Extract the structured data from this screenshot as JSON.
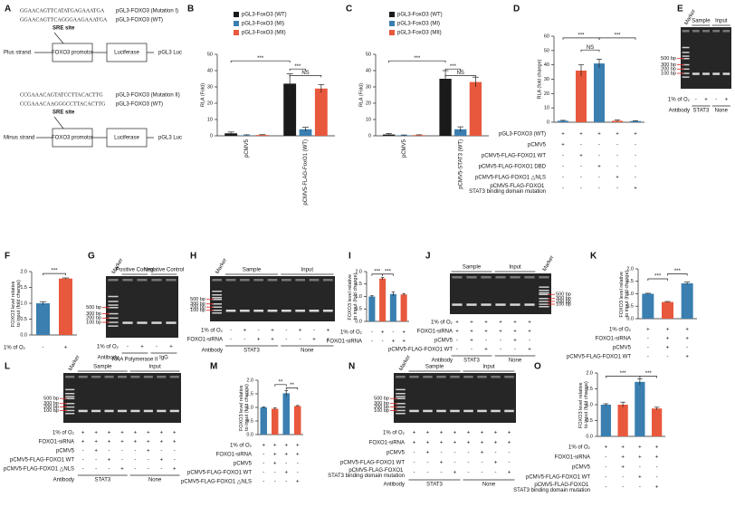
{
  "diagram": {
    "panel": "A",
    "seq_mut1": "GGAACAGTTCATATGAGAAATGA",
    "name_mut1": "pGL3-FOXO3 (Mutation I)",
    "seq_wt1": "GGAACAGTTCAGGGAAGAAATGA",
    "name_wt1": "pGL3-FOXO3 (WT)",
    "site1": "SRE site",
    "strand1": "Plus strand",
    "promoter1": "FOXO3 promotor",
    "luc1": "Luciferase",
    "vector1": "pGL3 Luc",
    "seq_mut2": "CCGAAACAGTATCCTTACACTTG",
    "name_mut2": "pGL3-FOXO3 (Mutation II)",
    "seq_wt2": "CCGAAACAAGGGCCTTACACTTG",
    "name_wt2": "pGL3-FOXO3 (WT)",
    "site2": "SRE site",
    "strand2": "Minus strand",
    "promoter2": "FOXO3 promotor",
    "luc2": "Luciferase",
    "vector2": "pGL3 Luc"
  },
  "chart_data": [
    {
      "panel": "B",
      "type": "bar",
      "ylabel": "RLA (Fold)",
      "categories": [
        "pCMV5",
        "pCMV5-FLAG-FoxO1 (WT)"
      ],
      "series": [
        {
          "name": "pGL3-FoxO3 (WT)",
          "color": "#1a1a1a",
          "values": [
            1.5,
            32
          ],
          "errors": [
            0.8,
            6
          ]
        },
        {
          "name": "pGL3-FoxO3 (MI)",
          "color": "#3a7fb0",
          "values": [
            0.3,
            4
          ],
          "errors": [
            0.3,
            1.2
          ]
        },
        {
          "name": "pGL3-FoxO3 (MII)",
          "color": "#e8583c",
          "values": [
            0.5,
            29
          ],
          "errors": [
            0.2,
            2.5
          ]
        }
      ],
      "ylim": [
        0,
        50
      ],
      "yticks": [
        0,
        10,
        20,
        30,
        40,
        50
      ],
      "annotations": [
        "***",
        "***",
        "NS"
      ]
    },
    {
      "panel": "C",
      "type": "bar",
      "ylabel": "RLA (Fold)",
      "categories": [
        "pCMV5",
        "pCMV5-STAT3 (WT)"
      ],
      "series": [
        {
          "name": "pGL3-FoxO3 (WT)",
          "color": "#1a1a1a",
          "values": [
            0.8,
            35
          ],
          "errors": [
            0.6,
            5
          ]
        },
        {
          "name": "pGL3-FoxO3 (MI)",
          "color": "#3a7fb0",
          "values": [
            0.3,
            4
          ],
          "errors": [
            0.2,
            1.5
          ]
        },
        {
          "name": "pGL3-FoxO3 (MII)",
          "color": "#e8583c",
          "values": [
            0.4,
            33
          ],
          "errors": [
            0.2,
            3
          ]
        }
      ],
      "ylim": [
        0,
        50
      ],
      "yticks": [
        0,
        10,
        20,
        30,
        40,
        50
      ],
      "annotations": [
        "***",
        "***",
        "NS"
      ]
    },
    {
      "panel": "D",
      "type": "bar",
      "ylabel": "RLA (fold change)",
      "values": [
        1,
        36,
        41,
        1,
        0.8
      ],
      "errors": [
        0.3,
        4,
        3,
        0.5,
        0.3
      ],
      "colors": [
        "#3a7fb0",
        "#e8583c",
        "#3a7fb0",
        "#e8583c",
        "#3a7fb0"
      ],
      "ylim": [
        0,
        60
      ],
      "yticks": [
        0,
        10,
        20,
        30,
        40,
        50,
        60
      ],
      "annotations": [
        "***",
        "NS",
        "***"
      ],
      "conditions": [
        {
          "label": "pGL3-FOXO3 (WT)",
          "signs": [
            "+",
            "+",
            "+",
            "+",
            "+"
          ]
        },
        {
          "label": "pCMV5",
          "signs": [
            "+",
            "-",
            "-",
            "-",
            "-"
          ]
        },
        {
          "label": "pCMV5-FLAG-FOXO1 WT",
          "signs": [
            "-",
            "+",
            "-",
            "-",
            "-"
          ]
        },
        {
          "label": "pCMV5-FLAG-FOXO1 DBD",
          "signs": [
            "-",
            "-",
            "+",
            "-",
            "-"
          ]
        },
        {
          "label": "pCMV5-FLAG-FOXO1 △NLS",
          "signs": [
            "-",
            "-",
            "-",
            "+",
            "-"
          ]
        },
        {
          "label": "pCMV5-FLAG-FOXO1 STAT3 binding domain mutation",
          "signs": [
            "-",
            "-",
            "-",
            "-",
            "+"
          ]
        }
      ]
    },
    {
      "panel": "F",
      "type": "bar",
      "ylabel": "FOXO3 level relative to input (fold change)",
      "values": [
        1.0,
        1.78
      ],
      "errors": [
        0.05,
        0.02
      ],
      "colors": [
        "#3a7fb0",
        "#e8583c"
      ],
      "ylim": [
        0,
        2
      ],
      "yticks": [
        {
          "value": 0,
          "label": "0.0"
        },
        0.5,
        {
          "value": 1,
          "label": "1.0"
        },
        1.5,
        {
          "value": 2,
          "label": "2.0"
        }
      ],
      "annotations": [
        "***"
      ],
      "conditions": [
        {
          "label": "1% of O₂",
          "signs": [
            "-",
            "+"
          ]
        }
      ]
    },
    {
      "panel": "I",
      "type": "bar",
      "ylabel": "FOXO3 level relative to input (fold change)",
      "values": [
        1.0,
        1.72,
        1.1,
        1.08
      ],
      "errors": [
        0.03,
        0.05,
        0.08,
        0.04
      ],
      "colors": [
        "#3a7fb0",
        "#e8583c",
        "#3a7fb0",
        "#e8583c"
      ],
      "ylim": [
        0,
        2
      ],
      "yticks": [
        {
          "value": 0,
          "label": "0.0"
        },
        0.5,
        {
          "value": 1,
          "label": "1.0"
        },
        1.5,
        {
          "value": 2,
          "label": "2.0"
        }
      ],
      "annotations": [
        "***",
        "***"
      ],
      "conditions": [
        {
          "label": "1% of O₂",
          "signs": [
            "-",
            "+",
            "-",
            "+"
          ]
        },
        {
          "label": "FOXO1-siRNA",
          "signs": [
            "-",
            "-",
            "+",
            "+"
          ]
        }
      ]
    },
    {
      "panel": "K",
      "type": "bar",
      "ylabel": "FOXO3 level relative to input (fold change)",
      "values": [
        1.0,
        0.67,
        1.42
      ],
      "errors": [
        0.02,
        0.02,
        0.05
      ],
      "colors": [
        "#3a7fb0",
        "#e8583c",
        "#3a7fb0"
      ],
      "ylim": [
        0,
        2
      ],
      "yticks": [
        {
          "value": 0,
          "label": "0.0"
        },
        0.5,
        {
          "value": 1,
          "label": "1.0"
        },
        1.5,
        {
          "value": 2,
          "label": "2.0"
        }
      ],
      "annotations": [
        "***",
        "***"
      ],
      "conditions": [
        {
          "label": "1% of O₂",
          "signs": [
            "+",
            "+",
            "+"
          ]
        },
        {
          "label": "FOXO1-siRNA",
          "signs": [
            "-",
            "+",
            "+"
          ]
        },
        {
          "label": "pCMV5",
          "signs": [
            "-",
            "+",
            "-"
          ]
        },
        {
          "label": "pCMV5-FLAG-FOXO1 WT",
          "signs": [
            "-",
            "-",
            "+"
          ]
        }
      ]
    },
    {
      "panel": "M",
      "type": "bar",
      "ylabel": "FOXO3 level relative to input (fold change)",
      "values": [
        1.0,
        0.95,
        1.52,
        1.05
      ],
      "errors": [
        0.02,
        0.03,
        0.1,
        0.02
      ],
      "colors": [
        "#3a7fb0",
        "#e8583c",
        "#3a7fb0",
        "#e8583c"
      ],
      "ylim": [
        0,
        2
      ],
      "yticks": [
        {
          "value": 0,
          "label": "0.0"
        },
        0.5,
        {
          "value": 1,
          "label": "1.0"
        },
        1.5,
        {
          "value": 2,
          "label": "2.0"
        }
      ],
      "annotations": [
        "**",
        "**"
      ],
      "conditions": [
        {
          "label": "1% of O₂",
          "signs": [
            "+",
            "+",
            "+",
            "+"
          ]
        },
        {
          "label": "FOXO1-siRNA",
          "signs": [
            "-",
            "+",
            "+",
            "+"
          ]
        },
        {
          "label": "pCMV5",
          "signs": [
            "-",
            "+",
            "-",
            "-"
          ]
        },
        {
          "label": "pCMV5-FLAG-FOXO1 WT",
          "signs": [
            "-",
            "-",
            "+",
            "-"
          ]
        },
        {
          "label": "pCMV5-FLAG-FOXO1 △NLS",
          "signs": [
            "-",
            "-",
            "-",
            "+"
          ]
        }
      ]
    },
    {
      "panel": "O",
      "type": "bar",
      "ylabel": "FOXO3 level relative to input (fold change)",
      "values": [
        1.0,
        1.0,
        1.72,
        0.88
      ],
      "errors": [
        0.03,
        0.08,
        0.1,
        0.04
      ],
      "colors": [
        "#3a7fb0",
        "#e8583c",
        "#3a7fb0",
        "#e8583c"
      ],
      "ylim": [
        0,
        2
      ],
      "yticks": [
        {
          "value": 0,
          "label": "0.0"
        },
        0.5,
        {
          "value": 1,
          "label": "1.0"
        },
        1.5,
        {
          "value": 2,
          "label": "2.0"
        }
      ],
      "annotations": [
        "***",
        "***"
      ],
      "conditions": [
        {
          "label": "1% of O₂",
          "signs": [
            "+",
            "+",
            "+",
            "+"
          ]
        },
        {
          "label": "FOXO1-siRNA",
          "signs": [
            "-",
            "+",
            "+",
            "+"
          ]
        },
        {
          "label": "pCMV5",
          "signs": [
            "-",
            "+",
            "-",
            "-"
          ]
        },
        {
          "label": "pCMV5-FLAG-FOXO1 WT",
          "signs": [
            "-",
            "-",
            "+",
            "-"
          ]
        },
        {
          "label": "pCMV5-FLAG-FOXO1 STAT3 binding domain mutation",
          "signs": [
            "-",
            "-",
            "-",
            "+"
          ]
        }
      ]
    }
  ],
  "gels": [
    {
      "panel": "E",
      "marker_label": "Marker",
      "marker_side": "left",
      "marker_labels": [
        "500 bp",
        "300 bp",
        "200 bp",
        "100 bp"
      ],
      "headers": [
        "Sample",
        "Input"
      ],
      "conditions": [
        {
          "label": "1% of O₂",
          "signs": [
            "-",
            "+",
            "-",
            "+"
          ]
        }
      ],
      "antibody": {
        "label": "Antibody",
        "groups": [
          "STAT3",
          "None"
        ]
      }
    },
    {
      "panel": "G",
      "marker_label": "Marker",
      "marker_side": "left",
      "marker_labels": [
        "500 bp",
        "300 bp",
        "200 bp",
        "100 bp"
      ],
      "headers": [
        "Positive Control",
        "Negative Control"
      ],
      "conditions": [
        {
          "label": "1% of O₂",
          "signs": [
            "-",
            "+",
            "-",
            "+"
          ]
        }
      ],
      "antibody": {
        "label": "Antibody",
        "groups": [
          "RNA Polymerase II",
          "IgG"
        ]
      }
    },
    {
      "panel": "H",
      "marker_label": "Marker",
      "marker_side": "left",
      "marker_labels": [
        "500 bp",
        "300 bp",
        "200 bp",
        "100 bp"
      ],
      "headers": [
        "Sample",
        "Input"
      ],
      "conditions": [
        {
          "label": "1% of O₂",
          "signs": [
            "-",
            "+",
            "-",
            "+",
            "-",
            "+",
            "-",
            "+"
          ]
        },
        {
          "label": "FOXO1-siRNA",
          "signs": [
            "-",
            "-",
            "+",
            "+",
            "-",
            "-",
            "+",
            "+"
          ]
        }
      ],
      "antibody": {
        "label": "Antibody",
        "groups": [
          "STAT3",
          "None"
        ]
      }
    },
    {
      "panel": "J",
      "marker_label": "Marker",
      "marker_side": "right",
      "marker_labels": [
        "500 bp",
        "300 bp",
        "200 bp",
        "100 bp"
      ],
      "headers": [
        "Sample",
        "Input"
      ],
      "conditions": [
        {
          "label": "1% of O₂",
          "signs": [
            "+",
            "+",
            "+",
            "+",
            "+",
            "+"
          ]
        },
        {
          "label": "FOXO1-siRNA",
          "signs": [
            "+",
            "+",
            "+",
            "+",
            "+",
            "+"
          ]
        },
        {
          "label": "pCMV5",
          "signs": [
            "-",
            "+",
            "-",
            "-",
            "+",
            "-"
          ]
        },
        {
          "label": "pCMV5-FLAG-FOXO1 WT",
          "signs": [
            "-",
            "-",
            "+",
            "-",
            "-",
            "+"
          ]
        }
      ],
      "antibody": {
        "label": "Antibody",
        "groups": [
          "STAT3",
          "None"
        ]
      }
    },
    {
      "panel": "L",
      "marker_label": "Marker",
      "marker_side": "left",
      "marker_labels": [
        "500 bp",
        "300 bp",
        "200 bp",
        "100 bp"
      ],
      "headers": [
        "Sample",
        "Input"
      ],
      "conditions": [
        {
          "label": "1% of O₂",
          "signs": [
            "+",
            "+",
            "+",
            "+",
            "+",
            "+",
            "+",
            "+"
          ]
        },
        {
          "label": "FOXO1-siRNA",
          "signs": [
            "+",
            "+",
            "+",
            "+",
            "+",
            "+",
            "+",
            "+"
          ]
        },
        {
          "label": "pCMV5",
          "signs": [
            "-",
            "+",
            "-",
            "-",
            "-",
            "+",
            "-",
            "-"
          ]
        },
        {
          "label": "pCMV5-FLAG-FOXO1 WT",
          "signs": [
            "-",
            "-",
            "+",
            "-",
            "-",
            "-",
            "+",
            "-"
          ]
        },
        {
          "label": "pCMV5-FLAG-FOXO1 △NLS",
          "signs": [
            "-",
            "-",
            "-",
            "+",
            "-",
            "-",
            "-",
            "+"
          ]
        }
      ],
      "antibody": {
        "label": "Antibody",
        "groups": [
          "STAT3",
          "None"
        ]
      }
    },
    {
      "panel": "N",
      "marker_label": "Marker",
      "marker_side": "left",
      "marker_labels": [
        "500 bp",
        "300 bp",
        "200 bp",
        "100 bp"
      ],
      "headers": [
        "Sample",
        "Input"
      ],
      "conditions": [
        {
          "label": "1% of O₂",
          "signs": [
            "+",
            "+",
            "+",
            "+",
            "+",
            "+",
            "+",
            "+"
          ]
        },
        {
          "label": "FOXO1-siRNA",
          "signs": [
            "+",
            "+",
            "+",
            "+",
            "+",
            "+",
            "+",
            "+"
          ]
        },
        {
          "label": "pCMV5",
          "signs": [
            "-",
            "+",
            "-",
            "-",
            "-",
            "+",
            "-",
            "-"
          ]
        },
        {
          "label": "pCMV5-FLAG-FOXO1 WT",
          "signs": [
            "-",
            "-",
            "+",
            "-",
            "-",
            "-",
            "+",
            "-"
          ]
        },
        {
          "label": "pCMV5-FLAG-FOXO1 STAT3 binding domain mutation",
          "signs": [
            "-",
            "-",
            "-",
            "+",
            "-",
            "-",
            "-",
            "+"
          ]
        }
      ],
      "antibody": {
        "label": "Antibody",
        "groups": [
          "STAT3",
          "None"
        ]
      }
    }
  ]
}
